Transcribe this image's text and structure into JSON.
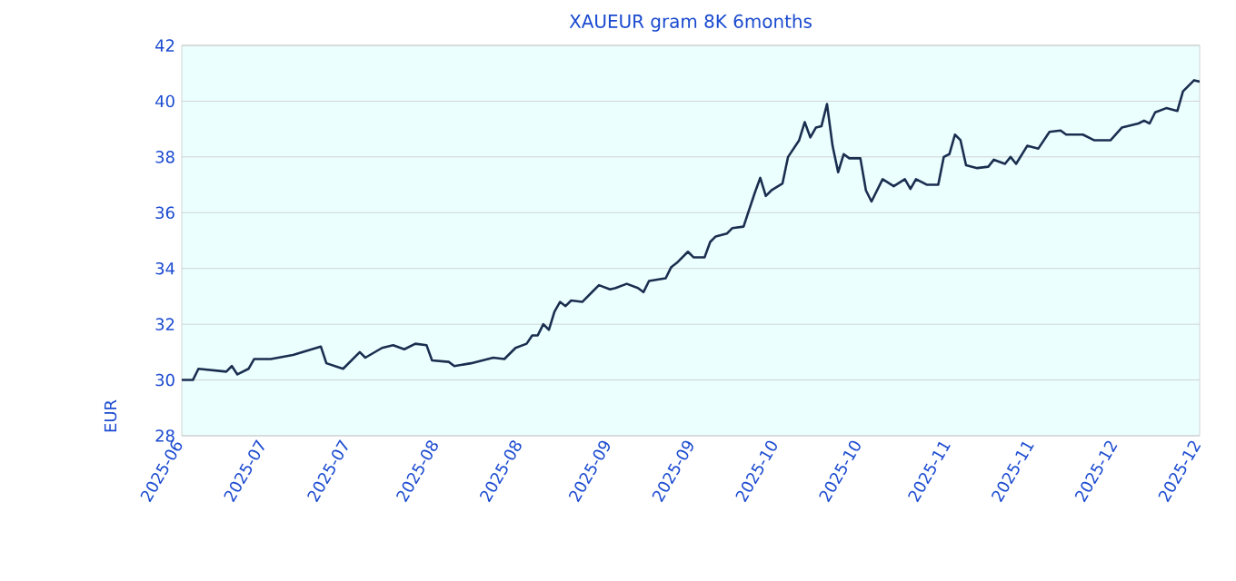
{
  "chart_data": {
    "type": "line",
    "title": "XAUEUR gram 8K 6months",
    "ylabel": "EUR",
    "x": [
      "2025-06-16",
      "2025-06-18",
      "2025-06-19",
      "2025-06-24",
      "2025-06-25",
      "2025-06-26",
      "2025-06-28",
      "2025-06-29",
      "2025-07-02",
      "2025-07-06",
      "2025-07-11",
      "2025-07-12",
      "2025-07-15",
      "2025-07-18",
      "2025-07-19",
      "2025-07-22",
      "2025-07-24",
      "2025-07-26",
      "2025-07-28",
      "2025-07-30",
      "2025-07-31",
      "2025-08-03",
      "2025-08-04",
      "2025-08-07",
      "2025-08-11",
      "2025-08-13",
      "2025-08-15",
      "2025-08-17",
      "2025-08-18",
      "2025-08-19",
      "2025-08-20",
      "2025-08-21",
      "2025-08-22",
      "2025-08-23",
      "2025-08-24",
      "2025-08-25",
      "2025-08-27",
      "2025-08-29",
      "2025-08-30",
      "2025-09-01",
      "2025-09-02",
      "2025-09-04",
      "2025-09-06",
      "2025-09-07",
      "2025-09-08",
      "2025-09-11",
      "2025-09-12",
      "2025-09-13",
      "2025-09-15",
      "2025-09-16",
      "2025-09-18",
      "2025-09-19",
      "2025-09-20",
      "2025-09-22",
      "2025-09-23",
      "2025-09-25",
      "2025-09-26",
      "2025-09-27",
      "2025-09-28",
      "2025-09-29",
      "2025-09-30",
      "2025-10-02",
      "2025-10-03",
      "2025-10-05",
      "2025-10-06",
      "2025-10-07",
      "2025-10-08",
      "2025-10-09",
      "2025-10-10",
      "2025-10-11",
      "2025-10-12",
      "2025-10-13",
      "2025-10-14",
      "2025-10-16",
      "2025-10-17",
      "2025-10-18",
      "2025-10-20",
      "2025-10-22",
      "2025-10-24",
      "2025-10-25",
      "2025-10-26",
      "2025-10-28",
      "2025-10-30",
      "2025-10-31",
      "2025-11-01",
      "2025-11-02",
      "2025-11-03",
      "2025-11-04",
      "2025-11-06",
      "2025-11-08",
      "2025-11-09",
      "2025-11-11",
      "2025-11-12",
      "2025-11-13",
      "2025-11-15",
      "2025-11-17",
      "2025-11-19",
      "2025-11-21",
      "2025-11-22",
      "2025-11-25",
      "2025-11-27",
      "2025-11-30",
      "2025-12-02",
      "2025-12-05",
      "2025-12-06",
      "2025-12-07",
      "2025-12-08",
      "2025-12-10",
      "2025-12-12",
      "2025-12-13",
      "2025-12-15",
      "2025-12-16"
    ],
    "series": [
      {
        "color": "#1a2e50",
        "values": [
          30.0,
          30.0,
          30.4,
          30.3,
          30.5,
          30.2,
          30.4,
          30.75,
          30.75,
          30.9,
          31.2,
          30.6,
          30.4,
          31.0,
          30.8,
          31.15,
          31.25,
          31.1,
          31.3,
          31.25,
          30.7,
          30.65,
          30.5,
          30.6,
          30.8,
          30.75,
          31.15,
          31.3,
          31.6,
          31.6,
          32.0,
          31.8,
          32.45,
          32.8,
          32.65,
          32.85,
          32.8,
          33.2,
          33.4,
          33.25,
          33.3,
          33.45,
          33.3,
          33.15,
          33.55,
          33.65,
          34.05,
          34.2,
          34.6,
          34.4,
          34.4,
          34.95,
          35.15,
          35.25,
          35.45,
          35.5,
          36.1,
          36.7,
          37.25,
          36.6,
          36.8,
          37.05,
          38.0,
          38.6,
          39.25,
          38.7,
          39.05,
          39.1,
          39.9,
          38.4,
          37.45,
          38.1,
          37.95,
          37.95,
          36.8,
          36.4,
          37.2,
          36.95,
          37.2,
          36.85,
          37.2,
          37.0,
          37.0,
          38.0,
          38.1,
          38.8,
          38.6,
          37.7,
          37.6,
          37.65,
          37.9,
          37.75,
          38.0,
          37.75,
          38.4,
          38.3,
          38.9,
          38.95,
          38.8,
          38.8,
          38.6,
          38.6,
          39.05,
          39.2,
          39.3,
          39.2,
          39.6,
          39.75,
          39.65,
          40.35,
          40.75,
          40.7
        ]
      }
    ],
    "xlim": [
      "2025-06-16",
      "2025-12-16"
    ],
    "xticks": [
      {
        "value": "2025-06-16",
        "label": "2025-06"
      },
      {
        "value": "2025-07-01",
        "label": "2025-07"
      },
      {
        "value": "2025-07-16",
        "label": "2025-07"
      },
      {
        "value": "2025-08-01",
        "label": "2025-08"
      },
      {
        "value": "2025-08-16",
        "label": "2025-08"
      },
      {
        "value": "2025-09-01",
        "label": "2025-09"
      },
      {
        "value": "2025-09-16",
        "label": "2025-09"
      },
      {
        "value": "2025-10-01",
        "label": "2025-10"
      },
      {
        "value": "2025-10-16",
        "label": "2025-10"
      },
      {
        "value": "2025-11-01",
        "label": "2025-11"
      },
      {
        "value": "2025-11-16",
        "label": "2025-11"
      },
      {
        "value": "2025-12-01",
        "label": "2025-12"
      },
      {
        "value": "2025-12-16",
        "label": "2025-12"
      }
    ],
    "ylim": [
      28,
      42
    ],
    "yticks": [
      28,
      30,
      32,
      34,
      36,
      38,
      40,
      42
    ],
    "grid": "y",
    "marker": "none",
    "line_style": "solid"
  }
}
